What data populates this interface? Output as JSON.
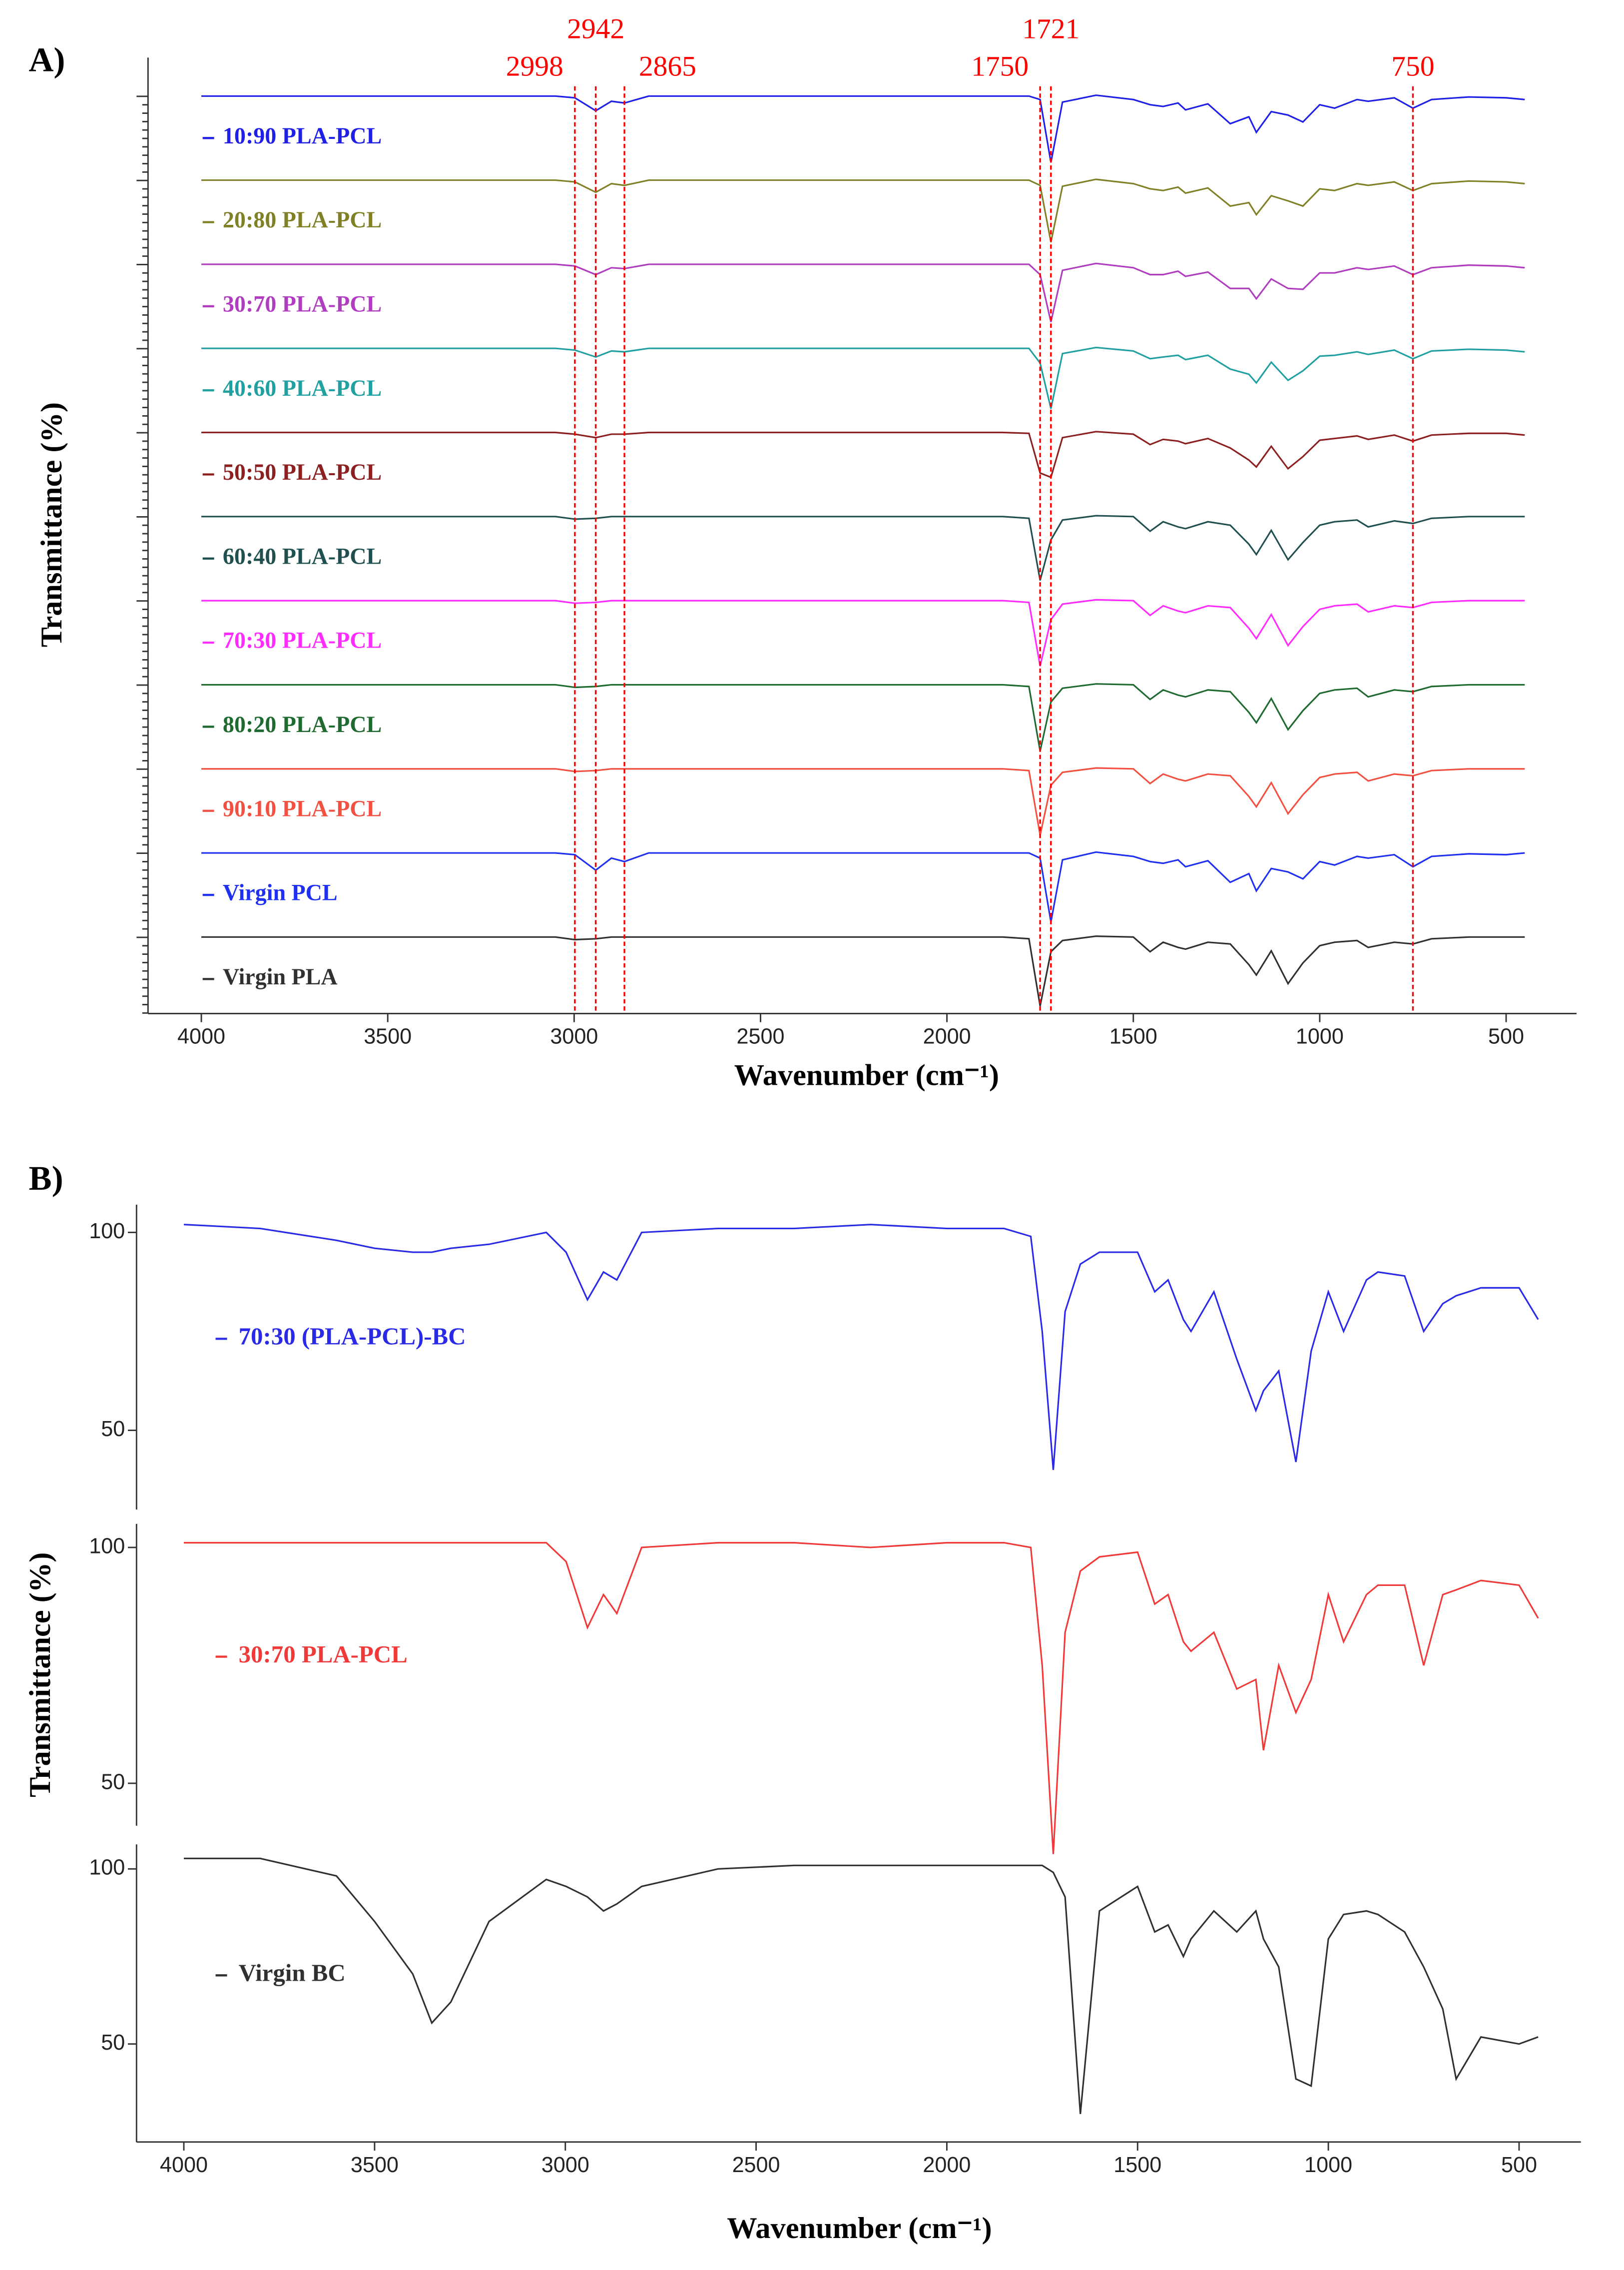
{
  "chart_data": [
    {
      "type": "offset-line",
      "panel_label": "A)",
      "x_label": "Wavenumber (cm⁻¹)",
      "y_label": "Transmittance (%)",
      "xlim": [
        4143,
        311
      ],
      "xticks": [
        4000,
        3500,
        3000,
        2500,
        2000,
        1500,
        1000,
        500
      ],
      "ylim": [
        0,
        100
      ],
      "markers": [
        2998,
        2942,
        2865,
        1750,
        1721,
        750
      ],
      "marker_color": "#ff0000",
      "x": [
        4000,
        3800,
        3600,
        3400,
        3200,
        3050,
        2998,
        2942,
        2900,
        2865,
        2800,
        2600,
        2400,
        2200,
        2000,
        1850,
        1780,
        1750,
        1721,
        1690,
        1600,
        1500,
        1455,
        1420,
        1380,
        1360,
        1300,
        1240,
        1190,
        1170,
        1130,
        1085,
        1045,
        1000,
        960,
        900,
        870,
        800,
        750,
        700,
        600,
        500,
        450
      ],
      "series": [
        {
          "name": "10:90 PLA-PCL",
          "color": "#1f1fe6",
          "values": [
            92,
            92,
            92,
            92,
            92,
            92,
            90,
            75,
            86,
            84,
            92,
            92,
            92,
            92,
            92,
            92,
            92,
            88,
            15,
            85,
            93,
            88,
            82,
            80,
            84,
            76,
            83,
            60,
            68,
            50,
            74,
            70,
            62,
            82,
            78,
            88,
            86,
            90,
            78,
            88,
            91,
            90,
            88
          ]
        },
        {
          "name": "20:80 PLA-PCL",
          "color": "#808026",
          "values": [
            92,
            92,
            92,
            92,
            92,
            92,
            90,
            78,
            88,
            86,
            92,
            92,
            92,
            92,
            92,
            92,
            92,
            86,
            20,
            85,
            93,
            88,
            82,
            80,
            84,
            77,
            83,
            62,
            66,
            52,
            74,
            68,
            62,
            82,
            80,
            88,
            86,
            90,
            80,
            88,
            91,
            90,
            88
          ]
        },
        {
          "name": "30:70 PLA-PCL",
          "color": "#b03cc0",
          "values": [
            92,
            92,
            92,
            92,
            92,
            92,
            90,
            80,
            88,
            87,
            92,
            92,
            92,
            92,
            92,
            92,
            92,
            80,
            25,
            85,
            93,
            88,
            80,
            80,
            84,
            78,
            83,
            64,
            64,
            52,
            75,
            64,
            63,
            82,
            82,
            88,
            86,
            90,
            80,
            88,
            91,
            90,
            88
          ]
        },
        {
          "name": "40:60 PLA-PCL",
          "color": "#20a0a0",
          "values": [
            92,
            92,
            92,
            92,
            92,
            92,
            90,
            82,
            89,
            88,
            92,
            92,
            92,
            92,
            92,
            92,
            92,
            75,
            22,
            86,
            93,
            89,
            80,
            82,
            84,
            79,
            84,
            68,
            62,
            52,
            76,
            55,
            66,
            83,
            84,
            88,
            85,
            90,
            80,
            89,
            91,
            90,
            88
          ]
        },
        {
          "name": "50:50 PLA-PCL",
          "color": "#8c2020",
          "values": [
            92,
            92,
            92,
            92,
            92,
            92,
            90,
            86,
            90,
            90,
            92,
            92,
            92,
            92,
            92,
            92,
            91,
            45,
            40,
            86,
            93,
            90,
            78,
            84,
            82,
            79,
            85,
            74,
            60,
            52,
            76,
            50,
            64,
            83,
            85,
            88,
            84,
            89,
            82,
            89,
            91,
            91,
            89
          ]
        },
        {
          "name": "60:40 PLA-PCL",
          "color": "#1f4f4f",
          "values": [
            92,
            92,
            92,
            92,
            92,
            92,
            89,
            90,
            92,
            92,
            92,
            92,
            92,
            92,
            92,
            92,
            90,
            18,
            65,
            88,
            93,
            92,
            75,
            86,
            80,
            78,
            86,
            82,
            60,
            48,
            76,
            42,
            62,
            82,
            86,
            88,
            80,
            87,
            84,
            90,
            92,
            92,
            92
          ]
        },
        {
          "name": "70:30 PLA-PCL",
          "color": "#ff2cff",
          "values": [
            92,
            92,
            92,
            92,
            92,
            92,
            89,
            90,
            92,
            92,
            92,
            92,
            92,
            92,
            92,
            92,
            90,
            16,
            70,
            88,
            93,
            92,
            75,
            86,
            80,
            78,
            86,
            84,
            60,
            48,
            76,
            40,
            62,
            82,
            86,
            88,
            79,
            86,
            84,
            90,
            92,
            92,
            92
          ]
        },
        {
          "name": "80:20 PLA-PCL",
          "color": "#1f6a30",
          "values": [
            92,
            92,
            92,
            92,
            92,
            92,
            89,
            90,
            92,
            92,
            92,
            92,
            92,
            92,
            92,
            92,
            90,
            15,
            72,
            88,
            93,
            92,
            75,
            86,
            80,
            78,
            86,
            84,
            60,
            48,
            76,
            40,
            62,
            82,
            86,
            88,
            78,
            86,
            84,
            90,
            92,
            92,
            92
          ]
        },
        {
          "name": "90:10 PLA-PCL",
          "color": "#f25040",
          "values": [
            92,
            92,
            92,
            92,
            92,
            92,
            89,
            90,
            92,
            92,
            92,
            92,
            92,
            92,
            92,
            92,
            90,
            15,
            73,
            88,
            93,
            92,
            75,
            86,
            80,
            78,
            86,
            84,
            60,
            48,
            76,
            40,
            62,
            82,
            86,
            88,
            78,
            86,
            84,
            90,
            92,
            92,
            92
          ]
        },
        {
          "name": "Virgin PCL",
          "color": "#1f30f0",
          "values": [
            92,
            92,
            92,
            92,
            92,
            92,
            90,
            72,
            86,
            82,
            92,
            92,
            92,
            92,
            92,
            92,
            92,
            86,
            12,
            84,
            93,
            88,
            82,
            80,
            84,
            76,
            83,
            58,
            68,
            48,
            74,
            70,
            62,
            82,
            78,
            88,
            86,
            90,
            76,
            88,
            91,
            90,
            92
          ]
        },
        {
          "name": "Virgin PLA",
          "color": "#303030",
          "values": [
            92,
            92,
            92,
            92,
            92,
            92,
            89,
            90,
            92,
            92,
            92,
            92,
            92,
            92,
            92,
            92,
            90,
            12,
            75,
            88,
            93,
            92,
            75,
            86,
            80,
            78,
            86,
            84,
            60,
            48,
            76,
            38,
            62,
            82,
            86,
            88,
            80,
            86,
            84,
            90,
            92,
            92,
            92
          ]
        }
      ]
    },
    {
      "type": "line",
      "panel_label": "B)",
      "x_label": "Wavenumber (cm⁻¹)",
      "y_label": "Transmittance (%)",
      "xlim": [
        4124,
        338
      ],
      "xticks": [
        4000,
        3500,
        3000,
        2500,
        2000,
        1500,
        1000,
        500
      ],
      "x": [
        4000,
        3800,
        3600,
        3500,
        3400,
        3350,
        3300,
        3200,
        3050,
        2998,
        2942,
        2900,
        2865,
        2800,
        2600,
        2400,
        2200,
        2000,
        1850,
        1780,
        1750,
        1721,
        1690,
        1650,
        1600,
        1500,
        1455,
        1420,
        1380,
        1360,
        1300,
        1240,
        1190,
        1170,
        1130,
        1085,
        1045,
        1000,
        960,
        900,
        870,
        800,
        750,
        700,
        665,
        600,
        500,
        450
      ],
      "panels": [
        {
          "ylim": [
            30,
            107
          ],
          "yticks": [
            50,
            100
          ],
          "series": [
            {
              "name": "70:30 (PLA-PCL)-BC",
              "color": "#2a2ae6",
              "values": [
                102,
                101,
                98,
                96,
                95,
                95,
                96,
                97,
                100,
                95,
                83,
                90,
                88,
                100,
                101,
                101,
                102,
                101,
                101,
                99,
                75,
                40,
                80,
                92,
                95,
                95,
                85,
                88,
                78,
                75,
                85,
                68,
                55,
                60,
                65,
                42,
                70,
                85,
                75,
                88,
                90,
                89,
                75,
                82,
                84,
                86,
                86,
                78
              ]
            }
          ]
        },
        {
          "ylim": [
            41,
            105
          ],
          "yticks": [
            50,
            100
          ],
          "series": [
            {
              "name": "30:70 PLA-PCL",
              "color": "#f03a3a",
              "values": [
                101,
                101,
                101,
                101,
                101,
                101,
                101,
                101,
                101,
                97,
                83,
                90,
                86,
                100,
                101,
                101,
                100,
                101,
                101,
                100,
                75,
                35,
                82,
                95,
                98,
                99,
                88,
                90,
                80,
                78,
                82,
                70,
                72,
                57,
                75,
                65,
                72,
                90,
                80,
                90,
                92,
                92,
                75,
                90,
                91,
                93,
                92,
                85
              ]
            }
          ]
        },
        {
          "ylim": [
            22,
            107
          ],
          "yticks": [
            50,
            100
          ],
          "series": [
            {
              "name": "Virgin BC",
              "color": "#303030",
              "values": [
                103,
                103,
                98,
                85,
                70,
                56,
                62,
                85,
                97,
                95,
                92,
                88,
                90,
                95,
                100,
                101,
                101,
                101,
                101,
                101,
                101,
                99,
                92,
                30,
                88,
                95,
                82,
                84,
                75,
                80,
                88,
                82,
                88,
                80,
                72,
                40,
                38,
                80,
                87,
                88,
                87,
                82,
                72,
                60,
                40,
                52,
                50,
                52
              ]
            }
          ]
        }
      ]
    }
  ]
}
